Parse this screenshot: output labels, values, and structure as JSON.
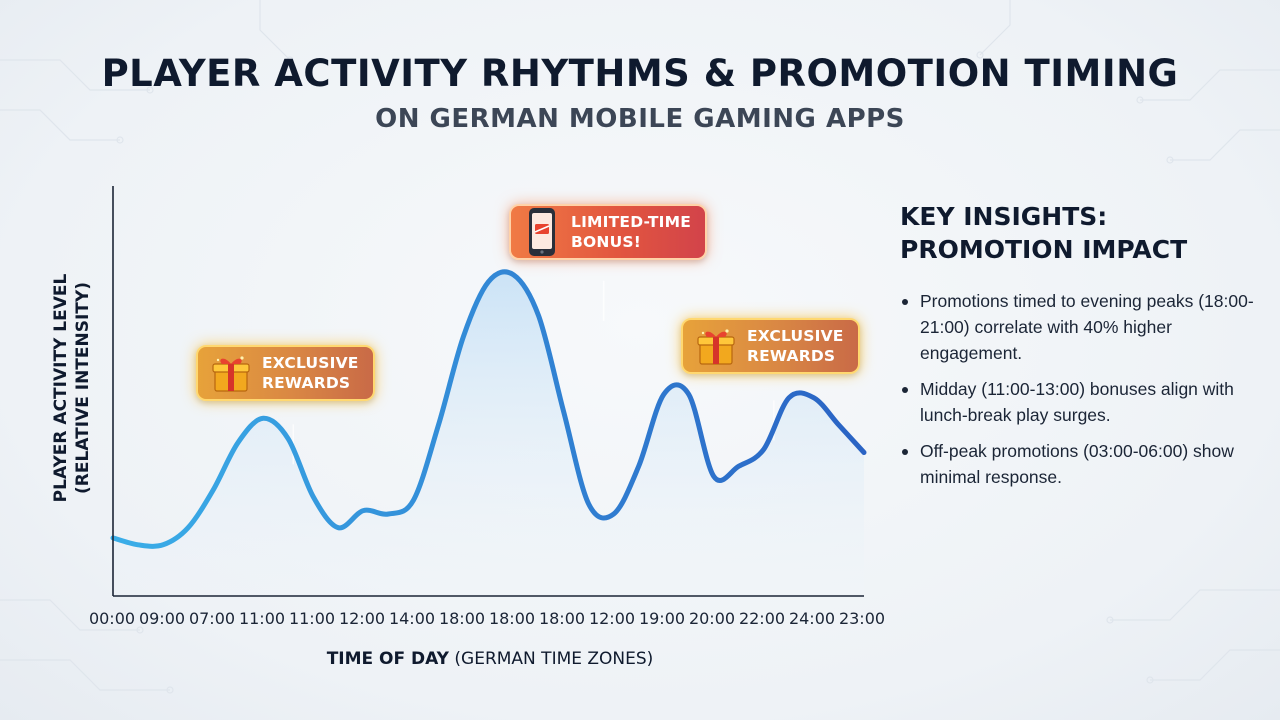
{
  "header": {
    "title": "PLAYER ACTIVITY RHYTHMS & PROMOTION TIMING",
    "subtitle": "ON GERMAN MOBILE GAMING APPS"
  },
  "chart_data": {
    "type": "area",
    "title": "PLAYER ACTIVITY RHYTHMS & PROMOTION TIMING",
    "subtitle": "ON GERMAN MOBILE GAMING APPS",
    "ylabel_lines": [
      "PLAYER ACTIVITY LEVEL",
      "(RELATIVE INTENSITY)"
    ],
    "xlabel_bold": "TIME OF DAY",
    "xlabel_rest": " (GERMAN TIME ZONES)",
    "categories": [
      "00:00",
      "09:00",
      "07:00",
      "11:00",
      "11:00",
      "12:00",
      "14:00",
      "18:00",
      "18:00",
      "18:00",
      "12:00",
      "19:00",
      "20:00",
      "22:00",
      "24:00",
      "23:00"
    ],
    "series": [
      {
        "x": [
          0,
          0.5,
          1.0,
          1.5,
          2.0,
          2.5,
          3.0,
          3.5,
          4.0,
          4.5,
          5.0,
          5.5,
          6.0,
          6.5,
          7.0,
          7.5,
          8.0,
          8.5,
          9.0,
          9.5,
          10.0,
          10.5,
          11.0,
          11.5,
          12.0,
          12.5,
          13.0,
          13.5,
          14.0,
          14.5,
          15.0
        ],
        "values": [
          17,
          15,
          15,
          20,
          31,
          45,
          52,
          46,
          29,
          20,
          25,
          24,
          28,
          50,
          76,
          92,
          94,
          82,
          54,
          27,
          24,
          38,
          59,
          59,
          35,
          38,
          43,
          58,
          58,
          50,
          42
        ]
      }
    ],
    "ylim": [
      0,
      120
    ],
    "xlim": [
      0,
      15
    ],
    "grid": false,
    "legend": "none",
    "annotations": [
      {
        "line1": "EXCLUSIVE",
        "line2": "REWARDS",
        "icon": "gift-icon",
        "style": "gold",
        "x": 3.6,
        "y": 52
      },
      {
        "line1": "LIMITED-TIME",
        "line2": "BONUS!",
        "icon": "smartphone-icon",
        "style": "red",
        "x": 9.8,
        "y": 94
      },
      {
        "line1": "EXCLUSIVE",
        "line2": "REWARDS",
        "icon": "gift-icon",
        "style": "gold",
        "x": 13.2,
        "y": 59
      }
    ],
    "colors": {
      "line_start": "#3aaee8",
      "line_end": "#2a63c4",
      "fill": "#c9e2f6",
      "axis": "#1b2536"
    }
  },
  "insights": {
    "title_line1": "KEY INSIGHTS:",
    "title_line2": "PROMOTION IMPACT",
    "items": [
      "Promotions timed to evening peaks (18:00-21:00) correlate with 40% higher engagement.",
      "Midday (11:00-13:00) bonuses align with lunch-break play surges.",
      "Off-peak promotions (03:00-06:00) show minimal response."
    ]
  }
}
